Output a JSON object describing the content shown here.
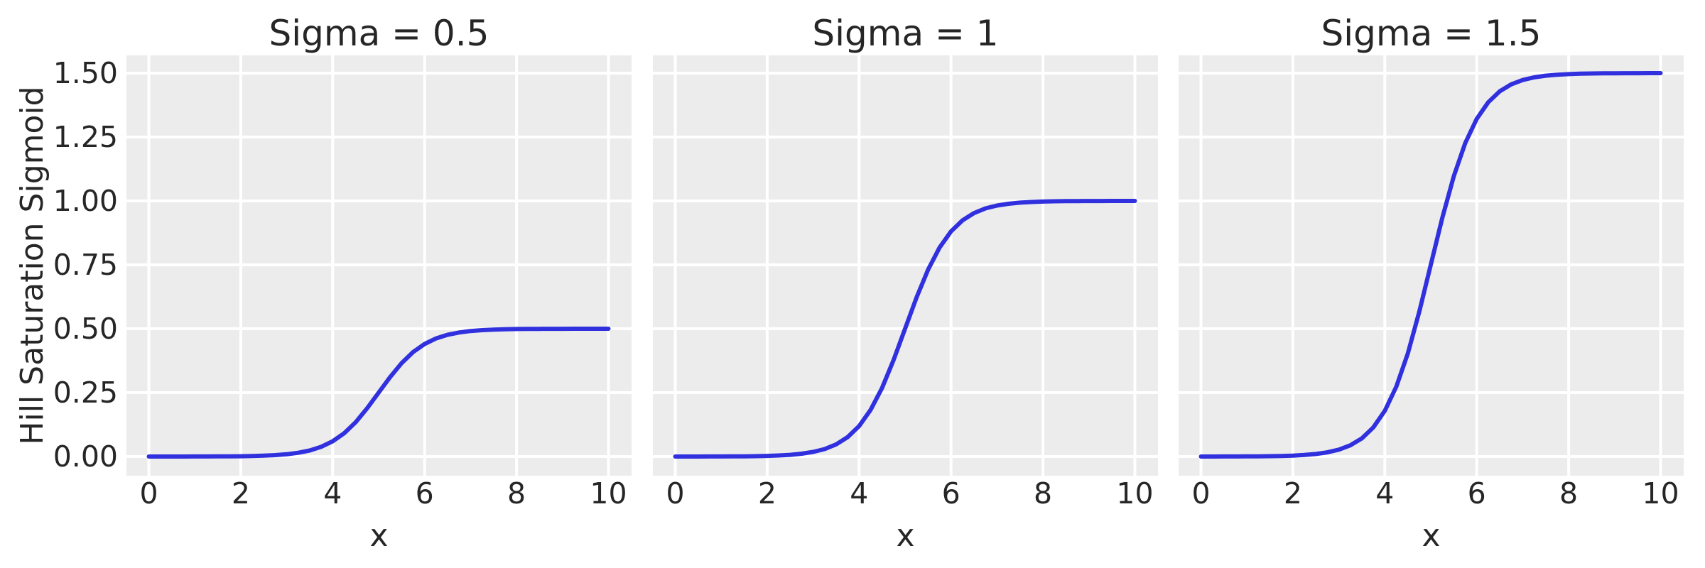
{
  "colors": {
    "figure_bg": "#ffffff",
    "panel_bg": "#ececec",
    "grid": "#ffffff",
    "line": "#3030df",
    "text": "#262626"
  },
  "chart_data": {
    "type": "line",
    "xlabel": "x",
    "ylabel": "Hill Saturation Sigmoid",
    "xlim": [
      -0.5,
      10.5
    ],
    "ylim": [
      -0.075,
      1.575
    ],
    "grid": true,
    "legend": "none",
    "x_ticks": [
      0,
      2,
      4,
      6,
      8,
      10
    ],
    "x_tick_labels": [
      "0",
      "2",
      "4",
      "6",
      "8",
      "10"
    ],
    "y_ticks": [
      0,
      0.25,
      0.5,
      0.75,
      1.0,
      1.25,
      1.5
    ],
    "y_tick_labels": [
      "0.00",
      "0.25",
      "0.50",
      "0.75",
      "1.00",
      "1.25",
      "1.50"
    ],
    "panels": [
      {
        "title": "Sigma = 0.5",
        "sigma": 0.5,
        "x": [
          0,
          0.25,
          0.5,
          0.75,
          1,
          1.25,
          1.5,
          1.75,
          2,
          2.25,
          2.5,
          2.75,
          3,
          3.25,
          3.5,
          3.75,
          4,
          4.25,
          4.5,
          4.75,
          5,
          5.25,
          5.5,
          5.75,
          6,
          6.25,
          6.5,
          6.75,
          7,
          7.25,
          7.5,
          7.75,
          8,
          8.25,
          8.5,
          8.75,
          9,
          9.25,
          9.5,
          9.75,
          10
        ],
        "y": [
          0.0,
          0.0,
          0.0001,
          0.0001,
          0.0002,
          0.0003,
          0.0005,
          0.0008,
          0.0012,
          0.002,
          0.0033,
          0.0055,
          0.009,
          0.0147,
          0.0237,
          0.038,
          0.0596,
          0.0912,
          0.1345,
          0.1888,
          0.25,
          0.3112,
          0.3655,
          0.4088,
          0.4404,
          0.4621,
          0.4763,
          0.4853,
          0.491,
          0.4945,
          0.4967,
          0.4979,
          0.4988,
          0.4992,
          0.4995,
          0.4997,
          0.4998,
          0.4999,
          0.4999,
          0.5,
          0.5
        ]
      },
      {
        "title": "Sigma = 1",
        "sigma": 1,
        "x": [
          0,
          0.25,
          0.5,
          0.75,
          1,
          1.25,
          1.5,
          1.75,
          2,
          2.25,
          2.5,
          2.75,
          3,
          3.25,
          3.5,
          3.75,
          4,
          4.25,
          4.5,
          4.75,
          5,
          5.25,
          5.5,
          5.75,
          6,
          6.25,
          6.5,
          6.75,
          7,
          7.25,
          7.5,
          7.75,
          8,
          8.25,
          8.5,
          8.75,
          9,
          9.25,
          9.5,
          9.75,
          10
        ],
        "y": [
          0.0,
          0.0001,
          0.0001,
          0.0002,
          0.0003,
          0.0006,
          0.0009,
          0.0015,
          0.0025,
          0.0041,
          0.0067,
          0.011,
          0.018,
          0.0293,
          0.0474,
          0.0759,
          0.1192,
          0.1824,
          0.2689,
          0.3775,
          0.5,
          0.6225,
          0.7311,
          0.8176,
          0.8808,
          0.9241,
          0.9526,
          0.9707,
          0.982,
          0.989,
          0.9933,
          0.9959,
          0.9975,
          0.9985,
          0.9991,
          0.9994,
          0.9997,
          0.9998,
          0.9999,
          0.9999,
          1.0
        ]
      },
      {
        "title": "Sigma = 1.5",
        "sigma": 1.5,
        "x": [
          0,
          0.25,
          0.5,
          0.75,
          1,
          1.25,
          1.5,
          1.75,
          2,
          2.25,
          2.5,
          2.75,
          3,
          3.25,
          3.5,
          3.75,
          4,
          4.25,
          4.5,
          4.75,
          5,
          5.25,
          5.5,
          5.75,
          6,
          6.25,
          6.5,
          6.75,
          7,
          7.25,
          7.5,
          7.75,
          8,
          8.25,
          8.5,
          8.75,
          9,
          9.25,
          9.5,
          9.75,
          10
        ],
        "y": [
          0.0001,
          0.0001,
          0.0002,
          0.0003,
          0.0005,
          0.0008,
          0.0014,
          0.0023,
          0.0037,
          0.0061,
          0.01,
          0.0165,
          0.0269,
          0.044,
          0.0711,
          0.1139,
          0.1788,
          0.2736,
          0.4034,
          0.5663,
          0.75,
          0.9337,
          1.0966,
          1.2264,
          1.3212,
          1.3861,
          1.4289,
          1.456,
          1.473,
          1.4835,
          1.4899,
          1.4938,
          1.4962,
          1.4977,
          1.4986,
          1.4992,
          1.4995,
          1.4997,
          1.4998,
          1.4999,
          1.5
        ]
      }
    ]
  }
}
